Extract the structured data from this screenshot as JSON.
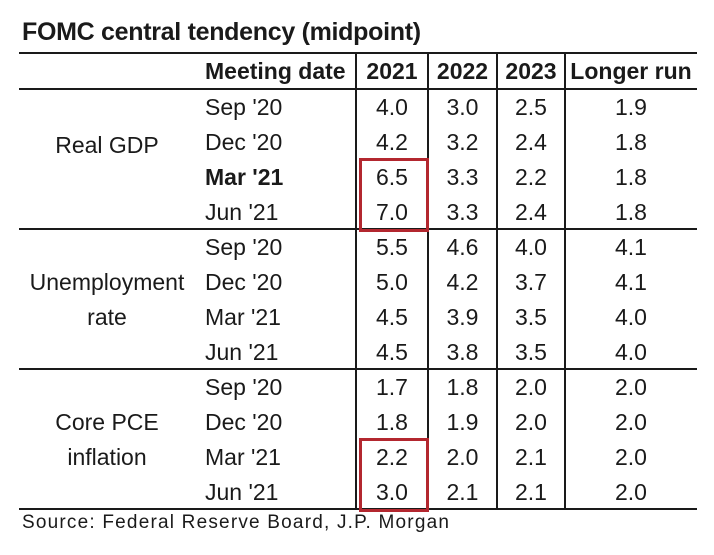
{
  "title": "FOMC central tendency (midpoint)",
  "headers": [
    "Meeting date",
    "2021",
    "2022",
    "2023",
    "Longer run"
  ],
  "groups": [
    {
      "label": [
        "Real GDP"
      ],
      "rows": [
        {
          "date": "Sep '20",
          "values": [
            "4.0",
            "3.0",
            "2.5",
            "1.9"
          ]
        },
        {
          "date": "Dec '20",
          "values": [
            "4.2",
            "3.2",
            "2.4",
            "1.8"
          ]
        },
        {
          "date": "Mar '21",
          "values": [
            "6.5",
            "3.3",
            "2.2",
            "1.8"
          ]
        },
        {
          "date": "Jun '21",
          "values": [
            "7.0",
            "3.3",
            "2.4",
            "1.8"
          ]
        }
      ]
    },
    {
      "label": [
        "Unemployment",
        "rate"
      ],
      "rows": [
        {
          "date": "Sep '20",
          "values": [
            "5.5",
            "4.6",
            "4.0",
            "4.1"
          ]
        },
        {
          "date": "Dec '20",
          "values": [
            "5.0",
            "4.2",
            "3.7",
            "4.1"
          ]
        },
        {
          "date": "Mar '21",
          "values": [
            "4.5",
            "3.9",
            "3.5",
            "4.0"
          ]
        },
        {
          "date": "Jun '21",
          "values": [
            "4.5",
            "3.8",
            "3.5",
            "4.0"
          ]
        }
      ]
    },
    {
      "label": [
        "Core PCE",
        "inflation"
      ],
      "rows": [
        {
          "date": "Sep '20",
          "values": [
            "1.7",
            "1.8",
            "2.0",
            "2.0"
          ]
        },
        {
          "date": "Dec '20",
          "values": [
            "1.8",
            "1.9",
            "2.0",
            "2.0"
          ]
        },
        {
          "date": "Mar '21",
          "values": [
            "2.2",
            "2.0",
            "2.1",
            "2.0"
          ]
        },
        {
          "date": "Jun '21",
          "values": [
            "3.0",
            "2.1",
            "2.1",
            "2.0"
          ]
        }
      ]
    }
  ],
  "emphasized_row": {
    "group": 0,
    "row": 2
  },
  "highlights": [
    {
      "group": 0,
      "rows": [
        2,
        3
      ],
      "column": "2021"
    },
    {
      "group": 2,
      "rows": [
        2,
        3
      ],
      "column": "2021"
    }
  ],
  "highlight_color": "#b3272f",
  "source": "Source: Federal Reserve Board, J.P. Morgan"
}
